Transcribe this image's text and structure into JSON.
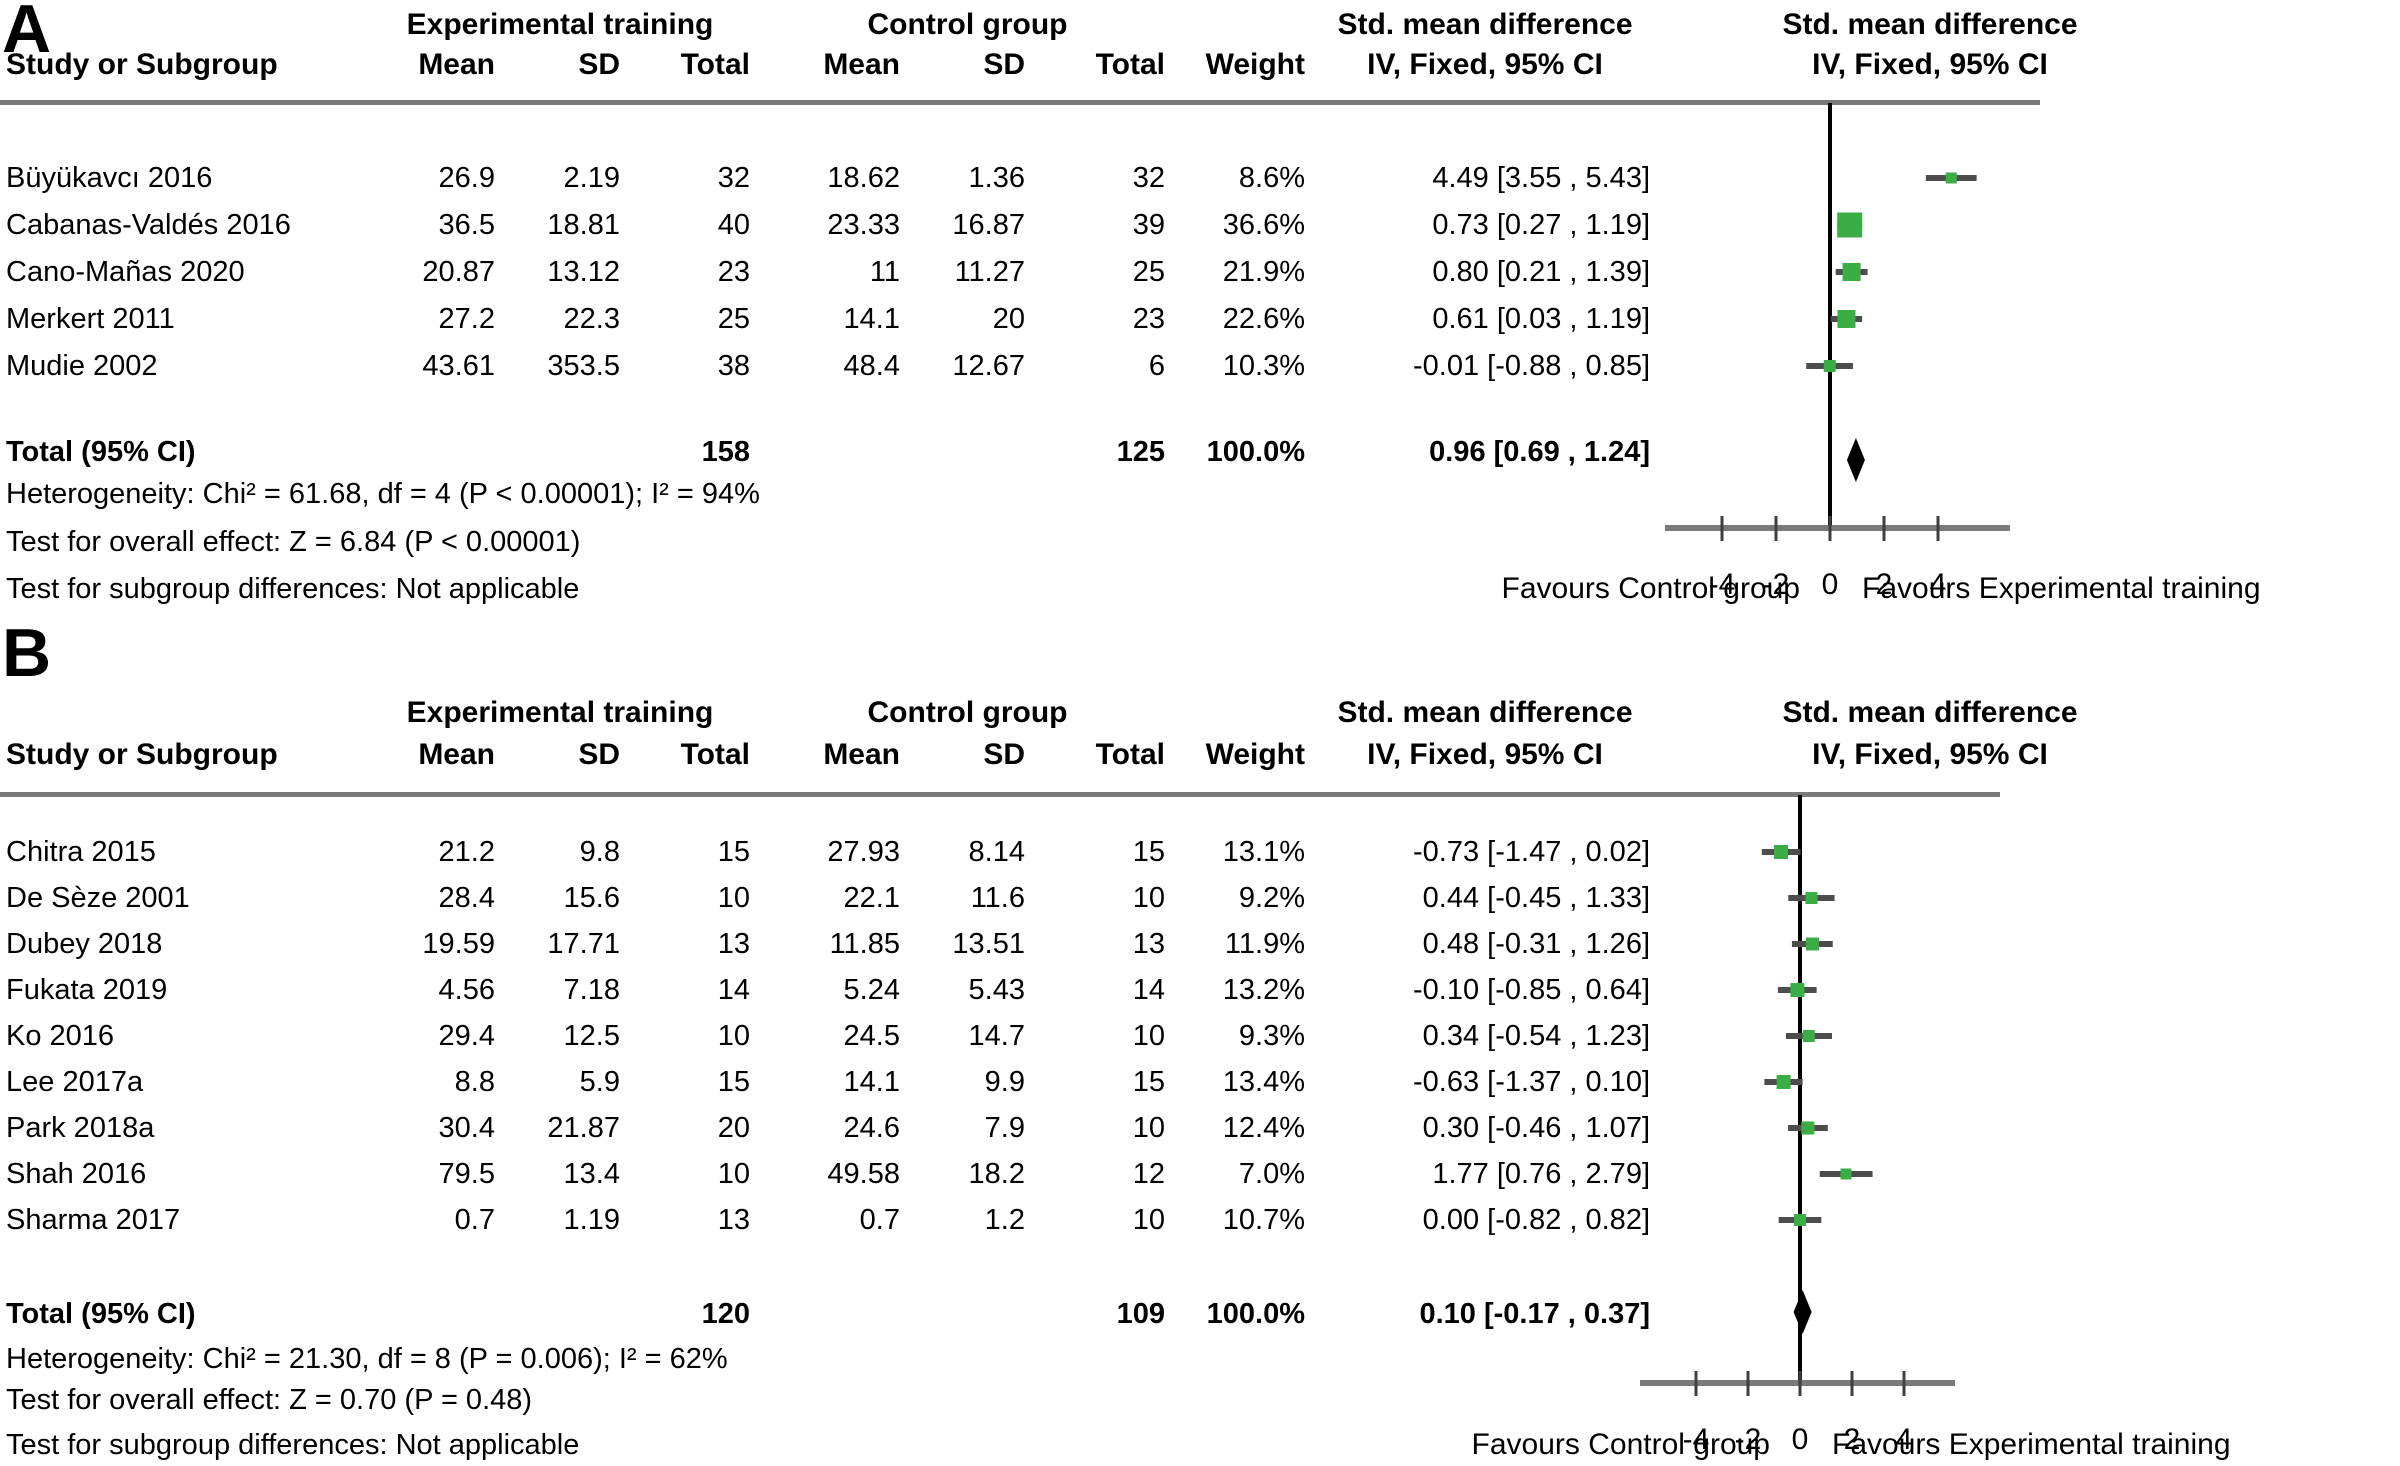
{
  "colors": {
    "square": "#3BAD45",
    "ci_line": "#4D4D4D",
    "diamond": "#000000",
    "zero_line": "#000000",
    "axis_line": "#7A7A7A",
    "header_rule": "#7A7A7A",
    "text": "#000000"
  },
  "chart_data": [
    {
      "type": "forest",
      "panel_label": "A",
      "effect_measure": "Std. mean difference",
      "method": "IV, Fixed, 95% CI",
      "col_headers": {
        "study": "Study or Subgroup",
        "group1": "Experimental training",
        "group2": "Control group",
        "mean": "Mean",
        "sd": "SD",
        "total": "Total",
        "weight": "Weight",
        "smd_title": "Std. mean difference",
        "smd_sub": "IV, Fixed, 95% CI"
      },
      "studies": [
        {
          "name": "Büyükavcı 2016",
          "mean_exp": "26.9",
          "sd_exp": "2.19",
          "n_exp": "32",
          "mean_ctl": "18.62",
          "sd_ctl": "1.36",
          "n_ctl": "32",
          "weight": "8.6%",
          "weight_value": 8.6,
          "ci_text": "4.49 [3.55 , 5.43]",
          "smd": 4.49,
          "ci_low": 3.55,
          "ci_high": 5.43
        },
        {
          "name": "Cabanas-Valdés 2016",
          "mean_exp": "36.5",
          "sd_exp": "18.81",
          "n_exp": "40",
          "mean_ctl": "23.33",
          "sd_ctl": "16.87",
          "n_ctl": "39",
          "weight": "36.6%",
          "weight_value": 36.6,
          "ci_text": "0.73 [0.27 , 1.19]",
          "smd": 0.73,
          "ci_low": 0.27,
          "ci_high": 1.19
        },
        {
          "name": "Cano-Mañas 2020",
          "mean_exp": "20.87",
          "sd_exp": "13.12",
          "n_exp": "23",
          "mean_ctl": "11",
          "sd_ctl": "11.27",
          "n_ctl": "25",
          "weight": "21.9%",
          "weight_value": 21.9,
          "ci_text": "0.80 [0.21 , 1.39]",
          "smd": 0.8,
          "ci_low": 0.21,
          "ci_high": 1.39
        },
        {
          "name": "Merkert 2011",
          "mean_exp": "27.2",
          "sd_exp": "22.3",
          "n_exp": "25",
          "mean_ctl": "14.1",
          "sd_ctl": "20",
          "n_ctl": "23",
          "weight": "22.6%",
          "weight_value": 22.6,
          "ci_text": "0.61 [0.03 , 1.19]",
          "smd": 0.61,
          "ci_low": 0.03,
          "ci_high": 1.19
        },
        {
          "name": "Mudie 2002",
          "mean_exp": "43.61",
          "sd_exp": "353.5",
          "n_exp": "38",
          "mean_ctl": "48.4",
          "sd_ctl": "12.67",
          "n_ctl": "6",
          "weight": "10.3%",
          "weight_value": 10.3,
          "ci_text": "-0.01 [-0.88 , 0.85]",
          "smd": -0.01,
          "ci_low": -0.88,
          "ci_high": 0.85
        }
      ],
      "total": {
        "label": "Total (95% CI)",
        "n_exp": "158",
        "n_ctl": "125",
        "weight": "100.0%",
        "ci_text": "0.96 [0.69 , 1.24]",
        "smd": 0.96,
        "ci_low": 0.69,
        "ci_high": 1.24
      },
      "footnotes": {
        "heterogeneity": "Heterogeneity: Chi² = 61.68, df = 4 (P < 0.00001); I² = 94%",
        "overall_effect": "Test for overall effect: Z = 6.84 (P < 0.00001)",
        "subgroup": "Test for subgroup differences: Not applicable"
      },
      "axis": {
        "ticks": [
          -4,
          -2,
          0,
          2,
          4
        ],
        "xmin": -6,
        "xmax": 6,
        "favours_left": "Favours Control group",
        "favours_right": "Favours Experimental training"
      }
    },
    {
      "type": "forest",
      "panel_label": "B",
      "effect_measure": "Std. mean difference",
      "method": "IV, Fixed, 95% CI",
      "col_headers": {
        "study": "Study or Subgroup",
        "group1": "Experimental training",
        "group2": "Control group",
        "mean": "Mean",
        "sd": "SD",
        "total": "Total",
        "weight": "Weight",
        "smd_title": "Std. mean difference",
        "smd_sub": "IV, Fixed, 95% CI"
      },
      "studies": [
        {
          "name": "Chitra 2015",
          "mean_exp": "21.2",
          "sd_exp": "9.8",
          "n_exp": "15",
          "mean_ctl": "27.93",
          "sd_ctl": "8.14",
          "n_ctl": "15",
          "weight": "13.1%",
          "weight_value": 13.1,
          "ci_text": "-0.73 [-1.47 , 0.02]",
          "smd": -0.73,
          "ci_low": -1.47,
          "ci_high": 0.02
        },
        {
          "name": "De Sèze 2001",
          "mean_exp": "28.4",
          "sd_exp": "15.6",
          "n_exp": "10",
          "mean_ctl": "22.1",
          "sd_ctl": "11.6",
          "n_ctl": "10",
          "weight": "9.2%",
          "weight_value": 9.2,
          "ci_text": "0.44 [-0.45 , 1.33]",
          "smd": 0.44,
          "ci_low": -0.45,
          "ci_high": 1.33
        },
        {
          "name": "Dubey 2018",
          "mean_exp": "19.59",
          "sd_exp": "17.71",
          "n_exp": "13",
          "mean_ctl": "11.85",
          "sd_ctl": "13.51",
          "n_ctl": "13",
          "weight": "11.9%",
          "weight_value": 11.9,
          "ci_text": "0.48 [-0.31 , 1.26]",
          "smd": 0.48,
          "ci_low": -0.31,
          "ci_high": 1.26
        },
        {
          "name": "Fukata 2019",
          "mean_exp": "4.56",
          "sd_exp": "7.18",
          "n_exp": "14",
          "mean_ctl": "5.24",
          "sd_ctl": "5.43",
          "n_ctl": "14",
          "weight": "13.2%",
          "weight_value": 13.2,
          "ci_text": "-0.10 [-0.85 , 0.64]",
          "smd": -0.1,
          "ci_low": -0.85,
          "ci_high": 0.64
        },
        {
          "name": "Ko 2016",
          "mean_exp": "29.4",
          "sd_exp": "12.5",
          "n_exp": "10",
          "mean_ctl": "24.5",
          "sd_ctl": "14.7",
          "n_ctl": "10",
          "weight": "9.3%",
          "weight_value": 9.3,
          "ci_text": "0.34 [-0.54 , 1.23]",
          "smd": 0.34,
          "ci_low": -0.54,
          "ci_high": 1.23
        },
        {
          "name": "Lee 2017a",
          "mean_exp": "8.8",
          "sd_exp": "5.9",
          "n_exp": "15",
          "mean_ctl": "14.1",
          "sd_ctl": "9.9",
          "n_ctl": "15",
          "weight": "13.4%",
          "weight_value": 13.4,
          "ci_text": "-0.63 [-1.37 , 0.10]",
          "smd": -0.63,
          "ci_low": -1.37,
          "ci_high": 0.1
        },
        {
          "name": "Park 2018a",
          "mean_exp": "30.4",
          "sd_exp": "21.87",
          "n_exp": "20",
          "mean_ctl": "24.6",
          "sd_ctl": "7.9",
          "n_ctl": "10",
          "weight": "12.4%",
          "weight_value": 12.4,
          "ci_text": "0.30 [-0.46 , 1.07]",
          "smd": 0.3,
          "ci_low": -0.46,
          "ci_high": 1.07
        },
        {
          "name": "Shah 2016",
          "mean_exp": "79.5",
          "sd_exp": "13.4",
          "n_exp": "10",
          "mean_ctl": "49.58",
          "sd_ctl": "18.2",
          "n_ctl": "12",
          "weight": "7.0%",
          "weight_value": 7.0,
          "ci_text": "1.77 [0.76 , 2.79]",
          "smd": 1.77,
          "ci_low": 0.76,
          "ci_high": 2.79
        },
        {
          "name": "Sharma 2017",
          "mean_exp": "0.7",
          "sd_exp": "1.19",
          "n_exp": "13",
          "mean_ctl": "0.7",
          "sd_ctl": "1.2",
          "n_ctl": "10",
          "weight": "10.7%",
          "weight_value": 10.7,
          "ci_text": "0.00 [-0.82 , 0.82]",
          "smd": 0.0,
          "ci_low": -0.82,
          "ci_high": 0.82
        }
      ],
      "total": {
        "label": "Total (95% CI)",
        "n_exp": "120",
        "n_ctl": "109",
        "weight": "100.0%",
        "ci_text": "0.10 [-0.17 , 0.37]",
        "smd": 0.1,
        "ci_low": -0.17,
        "ci_high": 0.37
      },
      "footnotes": {
        "heterogeneity": "Heterogeneity: Chi² = 21.30, df = 8 (P = 0.006); I² = 62%",
        "overall_effect": "Test for overall effect: Z = 0.70 (P = 0.48)",
        "subgroup": "Test for subgroup differences: Not applicable"
      },
      "axis": {
        "ticks": [
          -4,
          -2,
          0,
          2,
          4
        ],
        "xmin": -6,
        "xmax": 6,
        "favours_left": "Favours Control group",
        "favours_right": "Favours Experimental training"
      }
    }
  ]
}
